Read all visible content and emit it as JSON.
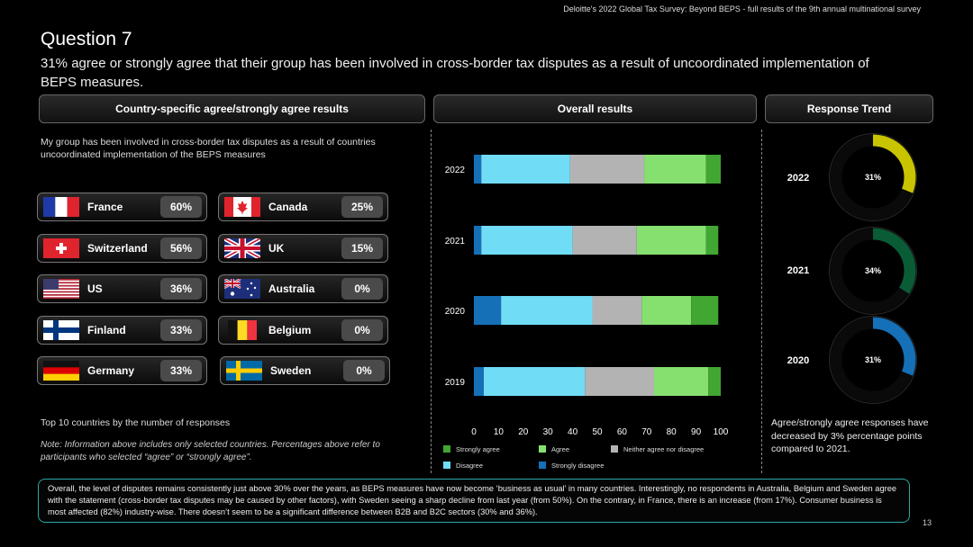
{
  "header": {
    "source": "Deloitte's 2022 Global Tax Survey: Beyond BEPS - full results of the 9th annual multinational survey",
    "question": "Question 7",
    "subtitle": "31% agree or strongly agree that their group has been involved in cross-border tax disputes as a result of uncoordinated implementation of BEPS measures."
  },
  "sections": {
    "country": "Country-specific agree/strongly agree results",
    "overall": "Overall results",
    "trend": "Response Trend"
  },
  "intro": "My group has been involved in cross-border tax disputes as a result of countries uncoordinated implementation of the BEPS measures",
  "countries": [
    {
      "name": "France",
      "value": "60%",
      "flag": "france-flag"
    },
    {
      "name": "Canada",
      "value": "25%",
      "flag": "canada-flag"
    },
    {
      "name": "Switzerland",
      "value": "56%",
      "flag": "switzerland-flag"
    },
    {
      "name": "UK",
      "value": "15%",
      "flag": "uk-flag"
    },
    {
      "name": "US",
      "value": "36%",
      "flag": "us-flag"
    },
    {
      "name": "Australia",
      "value": "0%",
      "flag": "australia-flag"
    },
    {
      "name": "Finland",
      "value": "33%",
      "flag": "finland-flag"
    },
    {
      "name": "Belgium",
      "value": "0%",
      "flag": "belgium-flag"
    },
    {
      "name": "Germany",
      "value": "33%",
      "flag": "germany-flag"
    },
    {
      "name": "Sweden",
      "value": "0%",
      "flag": "sweden-flag"
    }
  ],
  "top10_label": "Top 10 countries by the number of responses",
  "note": "Note: Information above includes only selected countries. Percentages above refer to participants who selected “agree” or “strongly agree”.",
  "chart_data": [
    {
      "type": "bar",
      "orientation": "horizontal-stacked",
      "categories": [
        "2022",
        "2021",
        "2020",
        "2019"
      ],
      "xlim": [
        0,
        100
      ],
      "xticks": [
        "0",
        "10",
        "20",
        "30",
        "40",
        "50",
        "60",
        "70",
        "80",
        "90",
        "100"
      ],
      "series": [
        {
          "name": "Strongly disagree",
          "color": "#1570b8",
          "values": [
            3,
            3,
            11,
            4
          ]
        },
        {
          "name": "Disagree",
          "color": "#71dcf6",
          "values": [
            36,
            37,
            37,
            41
          ]
        },
        {
          "name": "Neither agree nor disagree",
          "color": "#b3b3b4",
          "values": [
            30,
            26,
            20,
            28
          ]
        },
        {
          "name": "Agree",
          "color": "#86e06f",
          "values": [
            25,
            28,
            20,
            22
          ]
        },
        {
          "name": "Strongly agree",
          "color": "#42a632",
          "values": [
            6,
            5,
            11,
            5
          ]
        }
      ],
      "legend": [
        "Strongly agree",
        "Agree",
        "Neither agree nor disagree",
        "Disagree",
        "Strongly disagree"
      ],
      "legend_placement": "bottom",
      "grid": false
    },
    {
      "type": "pie",
      "style": "donut",
      "categories": [
        "2022",
        "2021",
        "2020"
      ],
      "values": [
        31,
        34,
        31
      ],
      "labels": [
        "31%",
        "34%",
        "31%"
      ],
      "colors": [
        "#c9c400",
        "#0a5c36",
        "#1570b8"
      ]
    }
  ],
  "trend_text": "Agree/strongly agree responses have decreased by 3% percentage points compared to 2021.",
  "summary": "Overall, the level of disputes remains consistently just above 30% over the years, as BEPS measures have now become ‘business as usual’ in many countries. Interestingly, no respondents in Australia, Belgium and Sweden agree with the statement (cross-border tax disputes may be caused by other factors), with Sweden seeing a sharp decline from last year (from 50%). On the contrary, in France, there is an increase (from 17%).  Consumer business is most affected (82%) industry-wise. There doesn’t seem to be a significant difference between B2B and B2C sectors (30% and 36%).",
  "page_number": "13"
}
